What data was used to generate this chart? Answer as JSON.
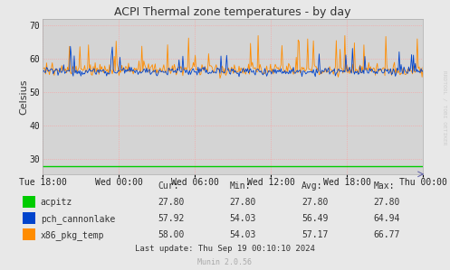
{
  "title": "ACPI Thermal zone temperatures - by day",
  "ylabel": "Celsius",
  "bg_color": "#e8e8e8",
  "plot_bg_color": "#d4d4d4",
  "grid_color": "#ff9999",
  "ylim": [
    25.5,
    72
  ],
  "yticks": [
    30,
    40,
    50,
    60,
    70
  ],
  "xlabel_ticks": [
    "Tue 18:00",
    "Wed 00:00",
    "Wed 06:00",
    "Wed 12:00",
    "Wed 18:00",
    "Thu 00:00"
  ],
  "acpitz_color": "#00cc00",
  "pch_color": "#0044cc",
  "pkg_color": "#ff8c00",
  "acpitz_value": 27.8,
  "legend": [
    {
      "label": "acpitz",
      "color": "#00cc00",
      "cur": "27.80",
      "min": "27.80",
      "avg": "27.80",
      "max": "27.80"
    },
    {
      "label": "pch_cannonlake",
      "color": "#0044cc",
      "cur": "57.92",
      "min": "54.03",
      "avg": "56.49",
      "max": "64.94"
    },
    {
      "label": "x86_pkg_temp",
      "color": "#ff8c00",
      "cur": "58.00",
      "min": "54.03",
      "avg": "57.17",
      "max": "66.77"
    }
  ],
  "last_update": "Last update: Thu Sep 19 00:10:10 2024",
  "munin_version": "Munin 2.0.56",
  "watermark": "RRDTOOL / TOBI OETIKER"
}
